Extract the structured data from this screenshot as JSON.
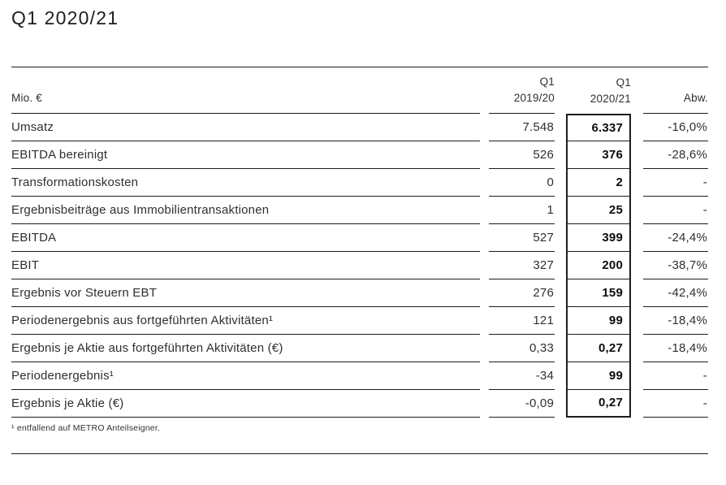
{
  "page": {
    "title": "Q1 2020/21",
    "footnote": "¹ entfallend auf METRO Anteilseigner."
  },
  "table": {
    "unit_label": "Mio. €",
    "columns": {
      "prev_line1": "Q1",
      "prev_line2": "2019/20",
      "curr_line1": "Q1",
      "curr_line2": "2020/21",
      "abw": "Abw."
    },
    "rows": [
      {
        "label": "Umsatz",
        "prev": "7.548",
        "curr": "6.337",
        "abw": "-16,0%"
      },
      {
        "label": "EBITDA bereinigt",
        "prev": "526",
        "curr": "376",
        "abw": "-28,6%"
      },
      {
        "label": "Transformationskosten",
        "prev": "0",
        "curr": "2",
        "abw": "-"
      },
      {
        "label": "Ergebnisbeiträge aus Immobilientransaktionen",
        "prev": "1",
        "curr": "25",
        "abw": "-"
      },
      {
        "label": "EBITDA",
        "prev": "527",
        "curr": "399",
        "abw": "-24,4%"
      },
      {
        "label": "EBIT",
        "prev": "327",
        "curr": "200",
        "abw": "-38,7%"
      },
      {
        "label": "Ergebnis vor Steuern EBT",
        "prev": "276",
        "curr": "159",
        "abw": "-42,4%"
      },
      {
        "label": "Periodenergebnis aus fortgeführten Aktivitäten¹",
        "prev": "121",
        "curr": "99",
        "abw": "-18,4%"
      },
      {
        "label": "Ergebnis je Aktie aus fortgeführten Aktivitäten (€)",
        "prev": "0,33",
        "curr": "0,27",
        "abw": "-18,4%"
      },
      {
        "label": "Periodenergebnis¹",
        "prev": "-34",
        "curr": "99",
        "abw": "-"
      },
      {
        "label": "Ergebnis je Aktie (€)",
        "prev": "-0,09",
        "curr": "0,27",
        "abw": "-"
      }
    ],
    "colors": {
      "text": "#2f2f2d",
      "emphasis": "#0d0d0c",
      "line": "#1d1d1b",
      "background": "#ffffff"
    }
  }
}
